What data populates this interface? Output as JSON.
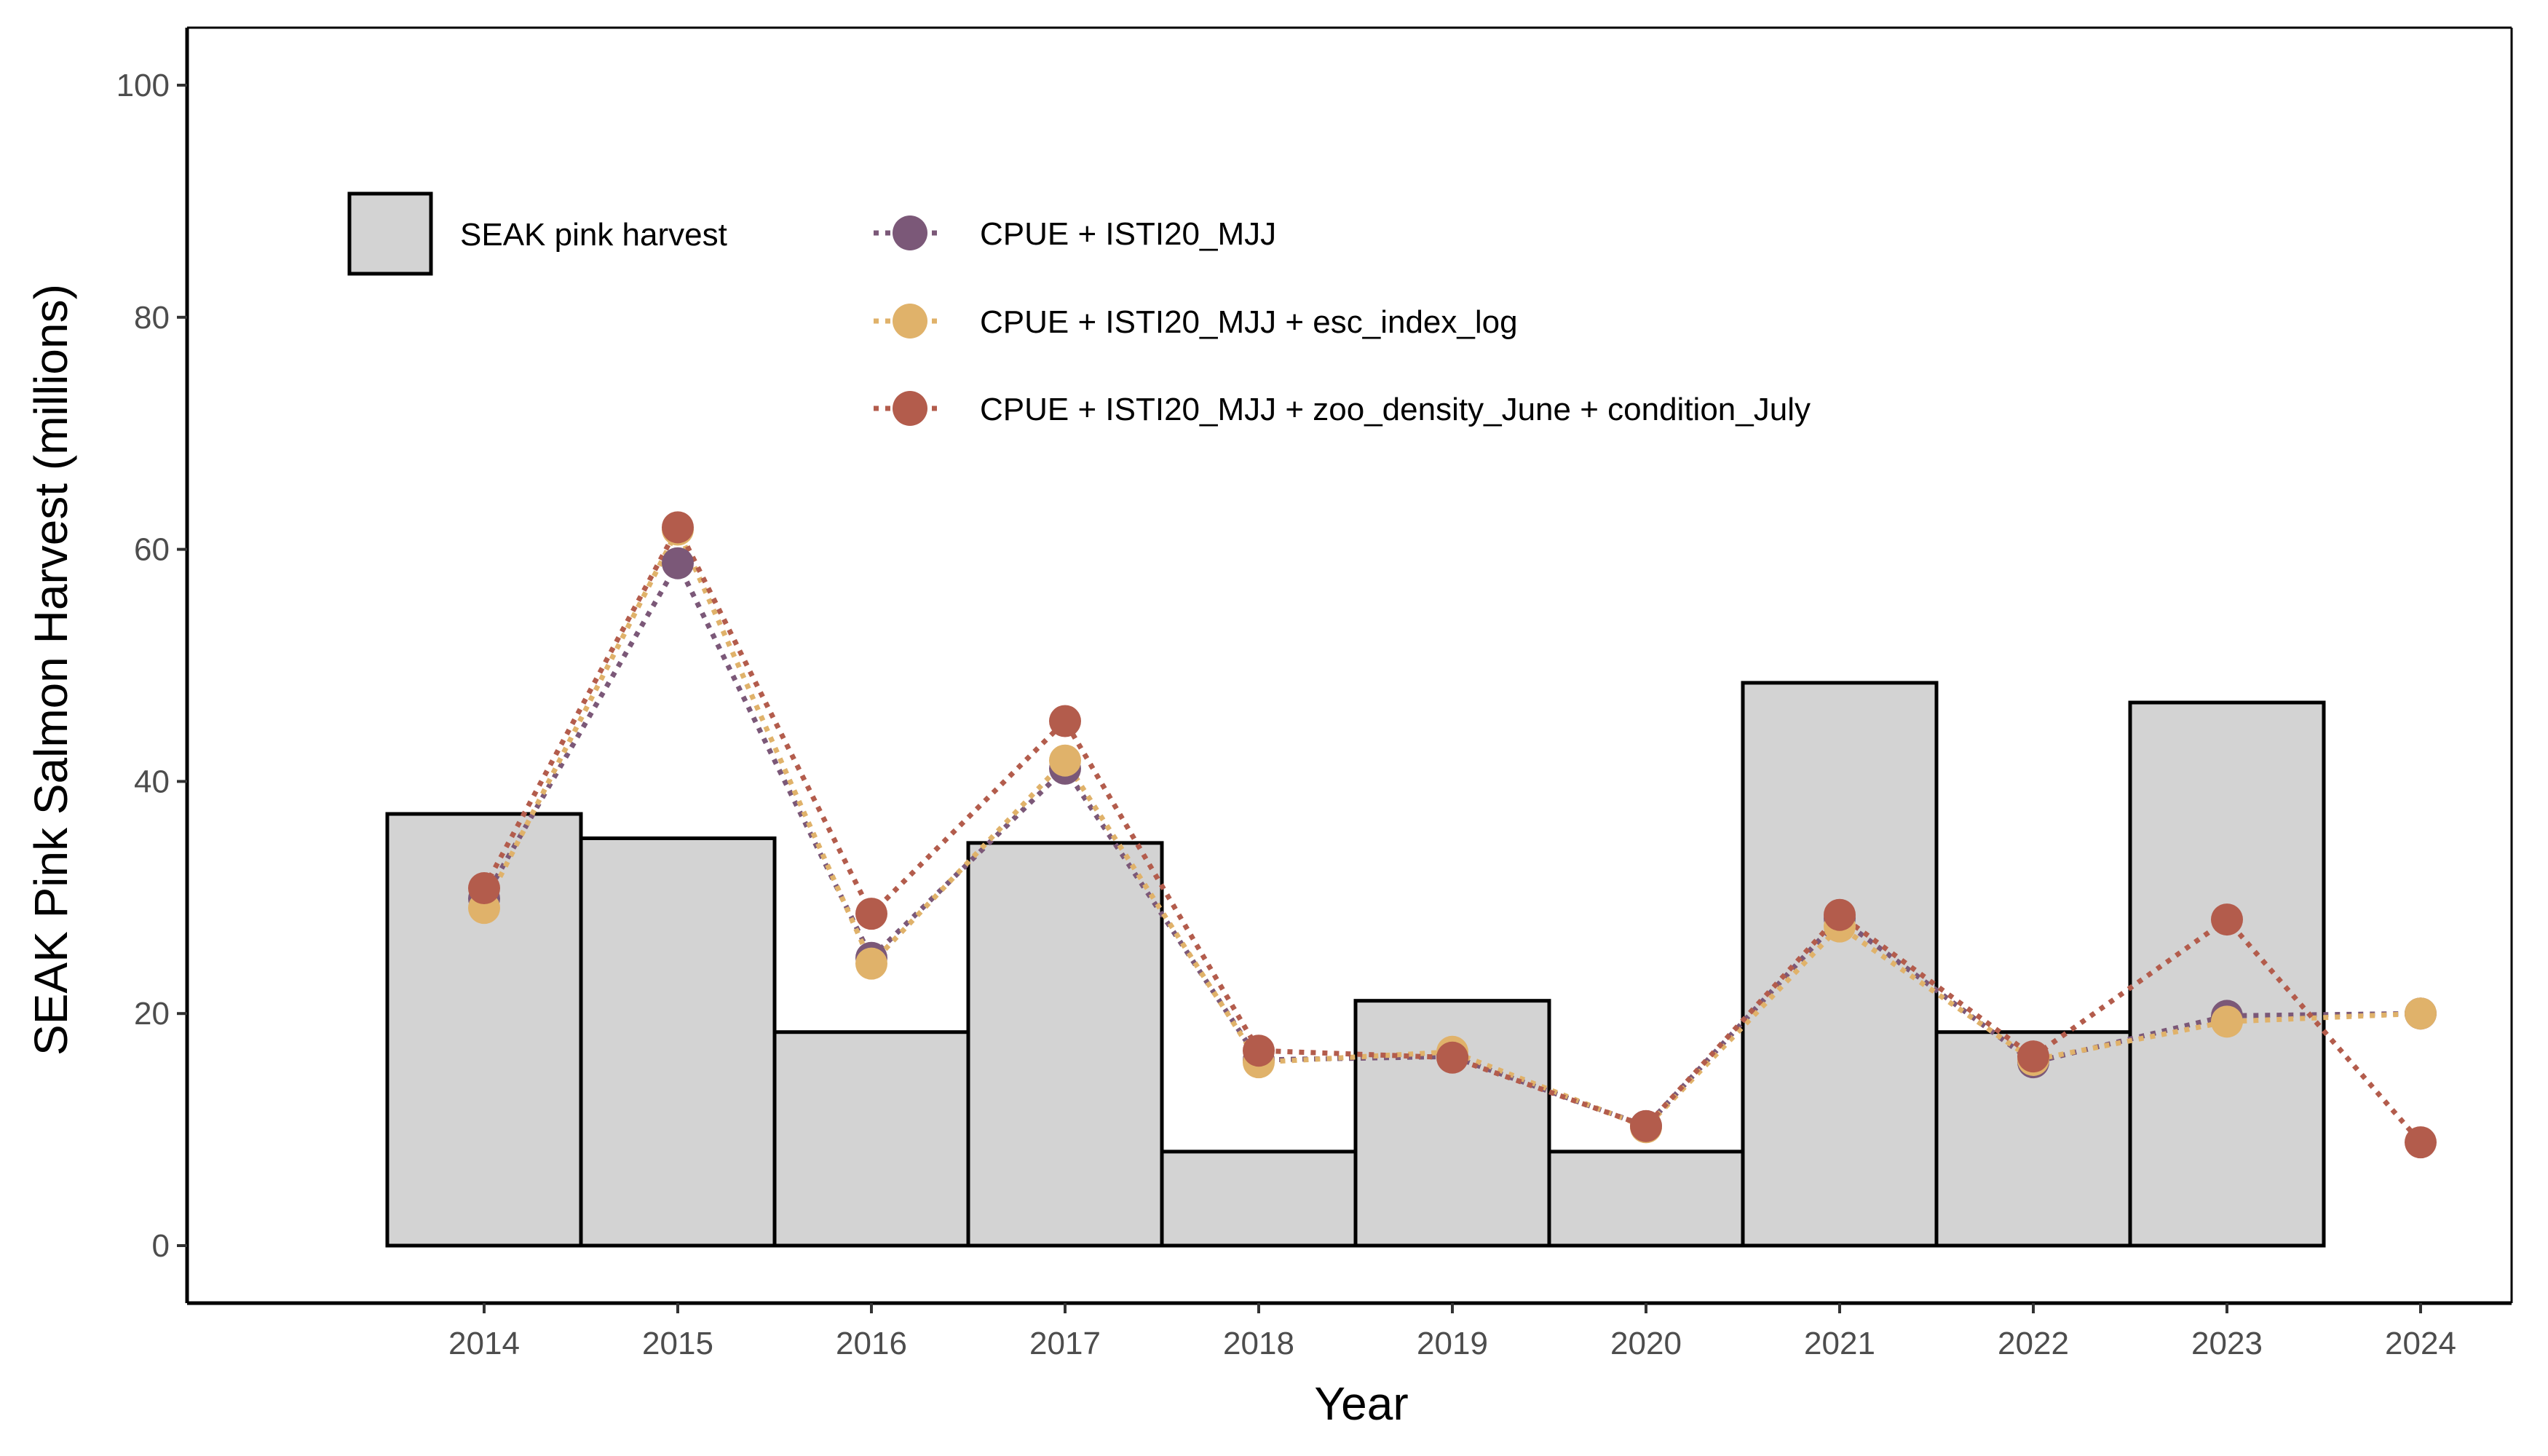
{
  "chart_data": {
    "type": "bar",
    "xlabel": "Year",
    "ylabel": "SEAK Pink Salmon Harvest (millions)",
    "ylim": [
      0,
      100
    ],
    "yticks": [
      0,
      20,
      40,
      60,
      80,
      100
    ],
    "grid": false,
    "categories": [
      "2014",
      "2015",
      "2016",
      "2017",
      "2018",
      "2019",
      "2020",
      "2021",
      "2022",
      "2023",
      "2024"
    ],
    "bars": {
      "name": "SEAK pink harvest",
      "fill": "#d3d3d3",
      "values": [
        37.2,
        35.1,
        18.4,
        34.7,
        8.1,
        21.1,
        8.1,
        48.5,
        18.4,
        46.8,
        null
      ]
    },
    "series": [
      {
        "name": "CPUE + ISTI20_MJJ",
        "color": "#7b5878",
        "values": [
          29.9,
          58.8,
          24.8,
          41.1,
          16.0,
          16.3,
          10.3,
          28.2,
          15.8,
          19.8,
          20.0
        ]
      },
      {
        "name": "CPUE + ISTI20_MJJ + esc_index_log",
        "color": "#e0b26a",
        "values": [
          29.1,
          61.7,
          24.3,
          41.8,
          15.8,
          16.7,
          10.2,
          27.5,
          16.0,
          19.3,
          20.0
        ]
      },
      {
        "name": "CPUE + ISTI20_MJJ + zoo_density_June + condition_July",
        "color": "#b35c4c",
        "values": [
          30.8,
          61.9,
          28.6,
          45.2,
          16.8,
          16.2,
          10.3,
          28.5,
          16.3,
          28.1,
          8.9
        ]
      }
    ],
    "legend": "inside-top-left"
  }
}
